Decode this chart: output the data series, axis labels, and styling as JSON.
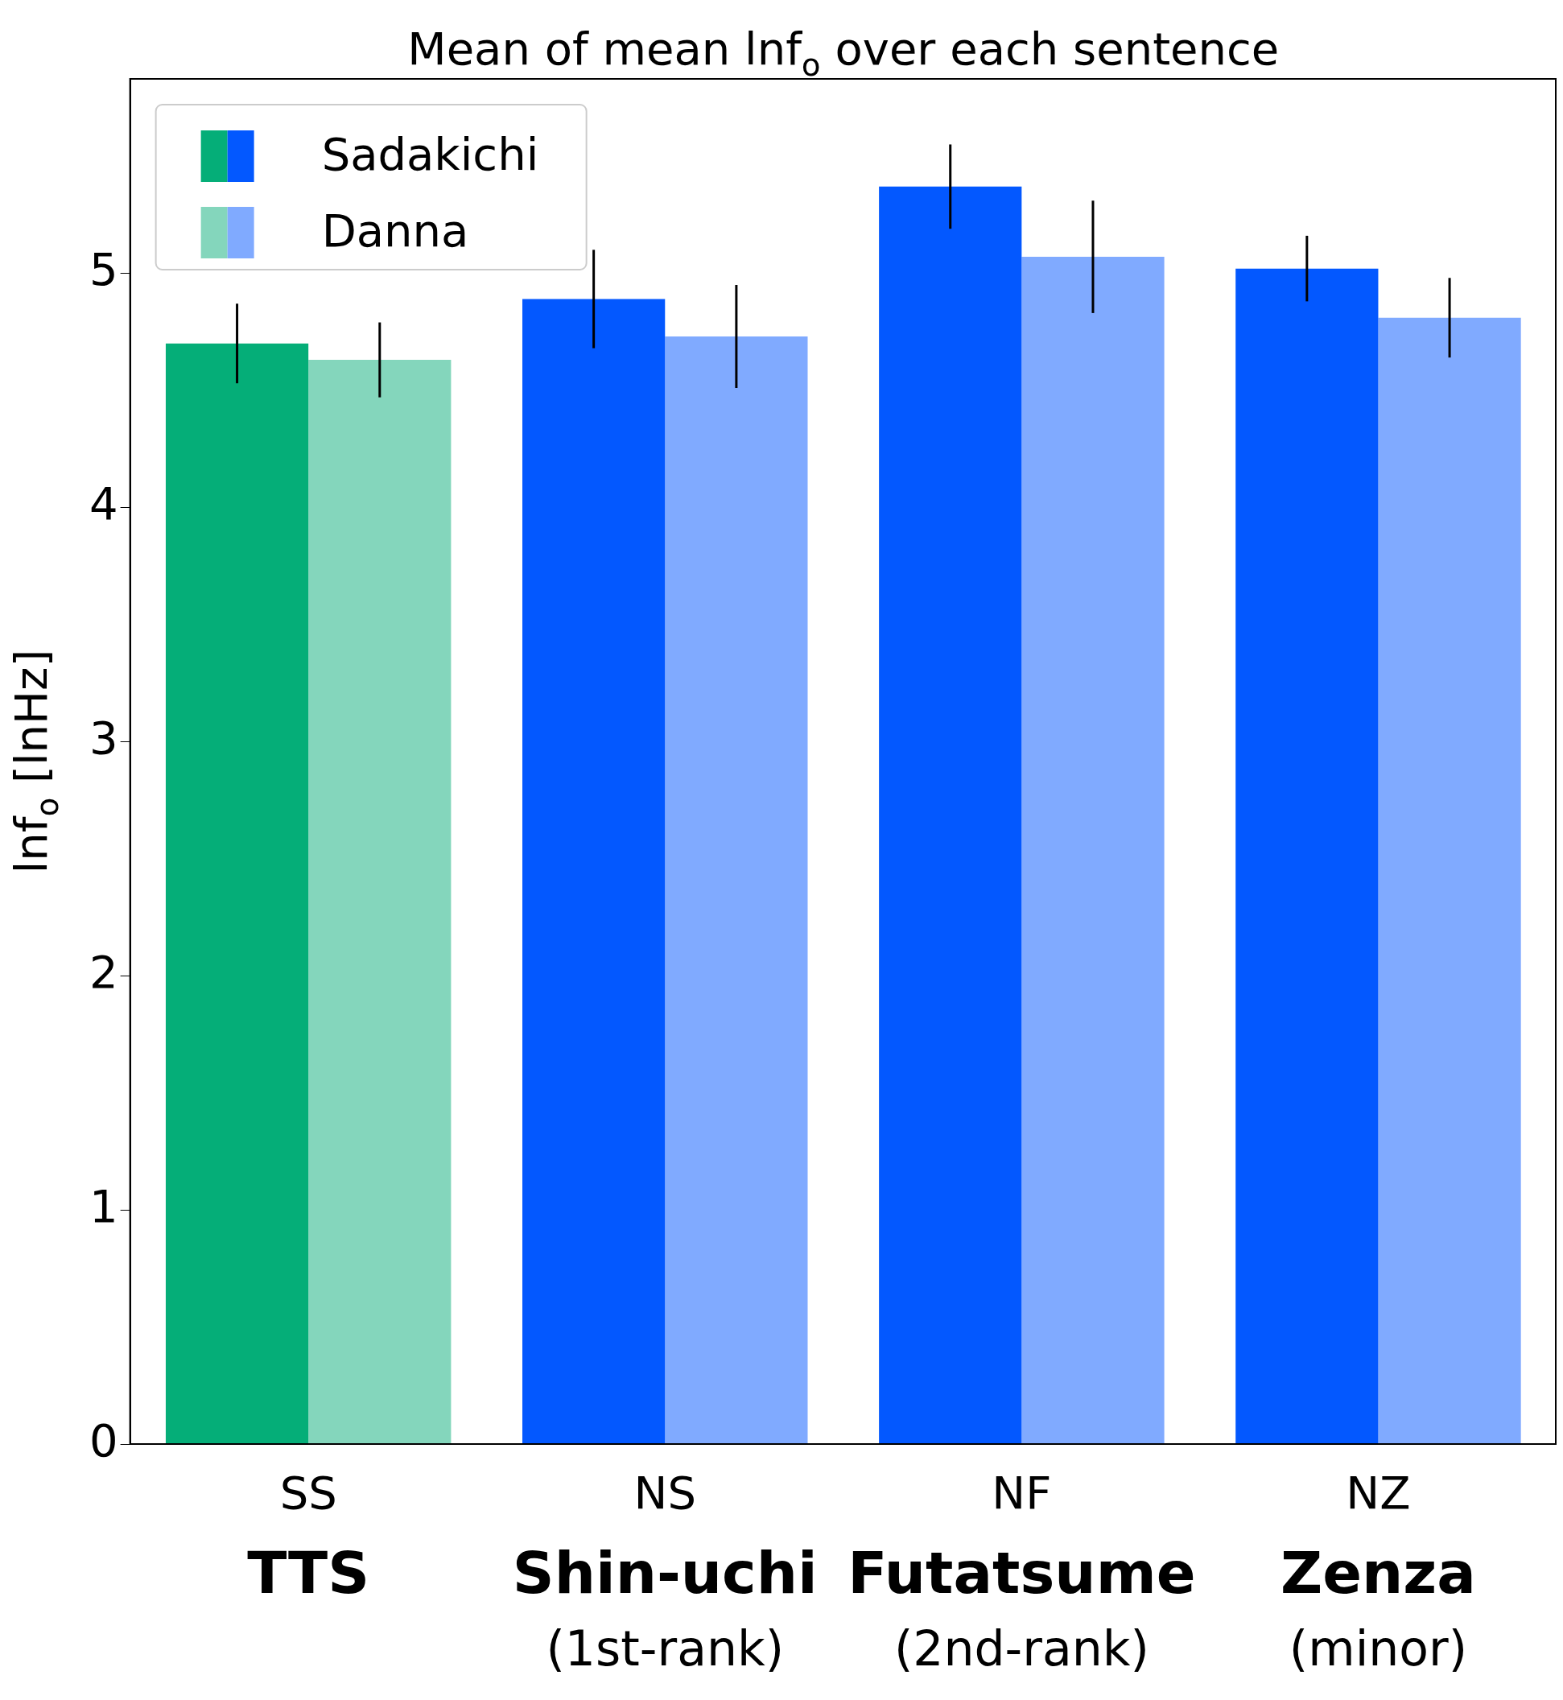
{
  "chart_data": {
    "type": "bar",
    "title": "Mean of mean lnf$_{o}$ over each sentence",
    "ylabel": "lnf$_{o}$ [lnHz]",
    "categories": [
      "SS\nTTS",
      "NS\nShin-uchi\n(1st-rank)",
      "NF\nFutatsume\n(2nd-rank)",
      "NZ\nZenza\n(minor)"
    ],
    "series": [
      {
        "name": "Sadakichi",
        "colors": [
          "#05ae78",
          "#0358ff",
          "#0358ff",
          "#0358ff"
        ],
        "values": [
          4.7,
          4.89,
          5.37,
          5.02
        ],
        "errors": [
          0.17,
          0.21,
          0.18,
          0.14
        ]
      },
      {
        "name": "Danna",
        "colors": [
          "#84d6bc",
          "#80aaff",
          "#80aaff",
          "#80aaff"
        ],
        "values": [
          4.63,
          4.73,
          5.07,
          4.81
        ],
        "errors": [
          0.16,
          0.22,
          0.24,
          0.17
        ]
      }
    ],
    "ylim": [
      0,
      5.83
    ],
    "yticks": [
      0,
      1,
      2,
      3,
      4,
      5
    ],
    "grid": false,
    "legend": "top left"
  }
}
